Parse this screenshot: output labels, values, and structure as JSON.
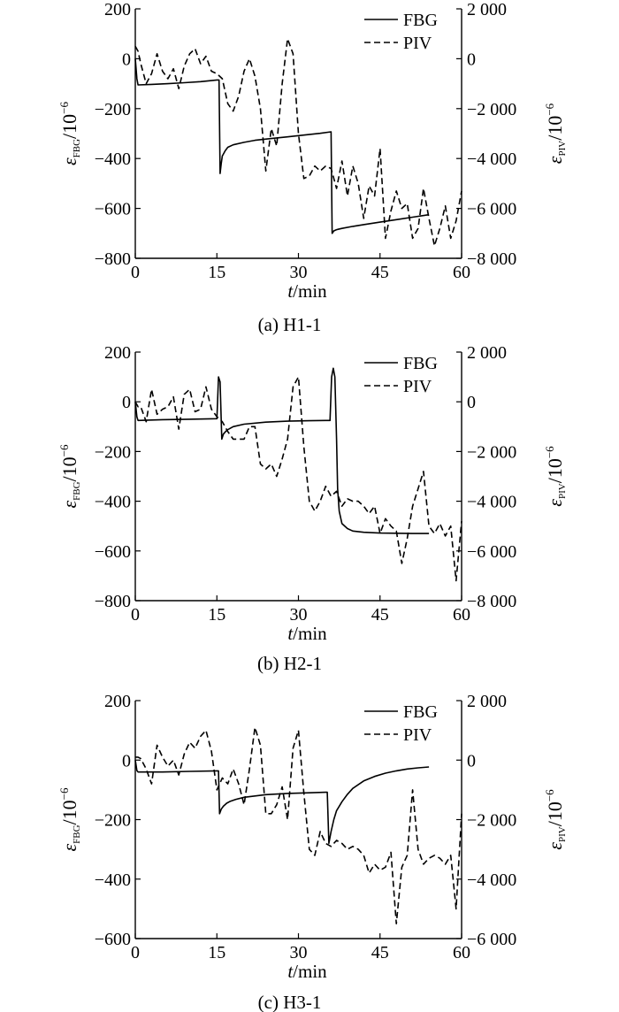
{
  "chart_data": [
    {
      "type": "line",
      "caption": "(a) H1-1",
      "xlabel_var": "t",
      "xlabel_unit": "/min",
      "ylabel_left": {
        "sym": "ε",
        "sub": "FBG",
        "unit": "/10",
        "exp": "−6"
      },
      "ylabel_right": {
        "sym": "ε",
        "sub": "PIV",
        "unit": "/10",
        "exp": "−6"
      },
      "xlim": [
        0,
        60
      ],
      "ylim_left": [
        -800,
        200
      ],
      "ylim_right": [
        -8000,
        2000
      ],
      "xticks": [
        0,
        15,
        30,
        45,
        60
      ],
      "xtick_labels": [
        "0",
        "15",
        "30",
        "45",
        "60"
      ],
      "yticks_left": [
        -800,
        -600,
        -400,
        -200,
        0,
        200
      ],
      "ytick_labels_left": [
        "−800",
        "−600",
        "−400",
        "−200",
        "0",
        "200"
      ],
      "yticks_right": [
        -8000,
        -6000,
        -4000,
        -2000,
        0,
        2000
      ],
      "ytick_labels_right": [
        "−8 000",
        "−6 000",
        "−4 000",
        "−2 000",
        "0",
        "2 000"
      ],
      "legend": [
        {
          "label": "FBG",
          "style": "solid"
        },
        {
          "label": "PIV",
          "style": "dashed"
        }
      ],
      "series": [
        {
          "name": "FBG",
          "axis": "left",
          "style": "solid",
          "x": [
            0,
            0.3,
            0.5,
            3,
            6,
            9,
            12,
            15,
            15.4,
            15.6,
            15.8,
            16,
            16.5,
            17,
            18,
            20,
            22,
            25,
            28,
            31,
            34,
            36,
            36.2,
            36.5,
            37,
            38,
            40,
            42,
            45,
            48,
            51,
            54
          ],
          "y": [
            0,
            -80,
            -105,
            -103,
            -100,
            -96,
            -92,
            -85,
            -85,
            -460,
            -420,
            -390,
            -370,
            -355,
            -345,
            -335,
            -327,
            -320,
            -313,
            -306,
            -299,
            -293,
            -700,
            -690,
            -685,
            -680,
            -672,
            -665,
            -655,
            -645,
            -635,
            -625
          ]
        },
        {
          "name": "PIV",
          "axis": "right",
          "style": "dashed",
          "x": [
            0,
            0.5,
            1,
            2,
            3,
            4,
            5,
            6,
            7,
            8,
            9,
            10,
            11,
            12,
            13,
            14,
            15,
            16,
            17,
            18,
            19,
            20,
            21,
            22,
            23,
            24,
            25,
            26,
            27,
            28,
            29,
            30,
            31,
            32,
            33,
            34,
            35,
            36,
            37,
            38,
            39,
            40,
            41,
            42,
            43,
            44,
            45,
            46,
            47,
            48,
            49,
            50,
            51,
            52,
            53,
            54,
            55,
            56,
            57,
            58,
            59,
            60
          ],
          "y": [
            500,
            300,
            -200,
            -1000,
            -600,
            200,
            -500,
            -800,
            -400,
            -1200,
            -300,
            200,
            400,
            -200,
            100,
            -500,
            -600,
            -800,
            -1800,
            -2100,
            -1500,
            -500,
            0,
            -700,
            -2000,
            -4500,
            -2800,
            -3500,
            -1000,
            800,
            200,
            -3000,
            -4800,
            -4700,
            -4300,
            -4500,
            -4300,
            -4400,
            -5200,
            -4100,
            -5500,
            -4300,
            -5000,
            -6400,
            -5100,
            -5500,
            -3600,
            -7200,
            -6100,
            -5300,
            -6000,
            -5800,
            -7200,
            -6800,
            -5200,
            -6400,
            -7500,
            -6800,
            -5900,
            -7200,
            -6500,
            -5300
          ]
        }
      ]
    },
    {
      "type": "line",
      "caption": "(b) H2-1",
      "xlabel_var": "t",
      "xlabel_unit": "/min",
      "ylabel_left": {
        "sym": "ε",
        "sub": "FBG",
        "unit": "/10",
        "exp": "−6"
      },
      "ylabel_right": {
        "sym": "ε",
        "sub": "PIV",
        "unit": "/10",
        "exp": "−6"
      },
      "xlim": [
        0,
        60
      ],
      "ylim_left": [
        -800,
        200
      ],
      "ylim_right": [
        -8000,
        2000
      ],
      "xticks": [
        0,
        15,
        30,
        45,
        60
      ],
      "xtick_labels": [
        "0",
        "15",
        "30",
        "45",
        "60"
      ],
      "yticks_left": [
        -800,
        -600,
        -400,
        -200,
        0,
        200
      ],
      "ytick_labels_left": [
        "−800",
        "−600",
        "−400",
        "−200",
        "0",
        "200"
      ],
      "yticks_right": [
        -8000,
        -6000,
        -4000,
        -2000,
        0,
        2000
      ],
      "ytick_labels_right": [
        "−8 000",
        "−6 000",
        "−4 000",
        "−2 000",
        "0",
        "2 000"
      ],
      "legend": [
        {
          "label": "FBG",
          "style": "solid"
        },
        {
          "label": "PIV",
          "style": "dashed"
        }
      ],
      "series": [
        {
          "name": "FBG",
          "axis": "left",
          "style": "solid",
          "x": [
            0,
            0.3,
            0.5,
            5,
            10,
            15,
            15.3,
            15.6,
            15.9,
            16.2,
            16.6,
            17,
            18,
            20,
            24,
            28,
            32,
            35,
            35.8,
            36.1,
            36.4,
            36.7,
            37,
            37.2,
            37.5,
            38,
            39,
            40,
            42,
            45,
            48,
            51,
            54
          ],
          "y": [
            0,
            -60,
            -75,
            -72,
            -70,
            -68,
            100,
            80,
            -150,
            -130,
            -120,
            -112,
            -100,
            -90,
            -82,
            -78,
            -76,
            -75,
            -75,
            100,
            135,
            100,
            -150,
            -350,
            -440,
            -490,
            -510,
            -520,
            -525,
            -528,
            -529,
            -530,
            -530
          ]
        },
        {
          "name": "PIV",
          "axis": "right",
          "style": "dashed",
          "x": [
            0,
            0.5,
            1,
            2,
            3,
            4,
            5,
            6,
            7,
            8,
            9,
            10,
            11,
            12,
            13,
            14,
            15,
            16,
            17,
            18,
            19,
            20,
            21,
            22,
            23,
            24,
            25,
            26,
            27,
            28,
            29,
            30,
            31,
            32,
            33,
            34,
            35,
            36,
            37,
            38,
            39,
            40,
            41,
            42,
            43,
            44,
            45,
            46,
            47,
            48,
            49,
            50,
            51,
            52,
            53,
            54,
            55,
            56,
            57,
            58,
            59,
            60
          ],
          "y": [
            0,
            -200,
            -200,
            -800,
            500,
            -500,
            -300,
            -200,
            200,
            -1100,
            300,
            500,
            -400,
            -300,
            600,
            -300,
            -600,
            -800,
            -1200,
            -1500,
            -1500,
            -1500,
            -1000,
            -1000,
            -2500,
            -2700,
            -2500,
            -3000,
            -2300,
            -1500,
            600,
            1000,
            -1800,
            -4000,
            -4400,
            -4000,
            -3400,
            -3800,
            -3600,
            -4200,
            -3900,
            -4000,
            -4000,
            -4200,
            -4500,
            -4200,
            -5300,
            -4700,
            -5000,
            -5200,
            -6500,
            -5500,
            -4200,
            -3500,
            -2800,
            -5000,
            -5300,
            -4900,
            -5400,
            -5000,
            -7200,
            -4800
          ]
        }
      ]
    },
    {
      "type": "line",
      "caption": "(c) H3-1",
      "xlabel_var": "t",
      "xlabel_unit": "/min",
      "ylabel_left": {
        "sym": "ε",
        "sub": "FBG",
        "unit": "/10",
        "exp": "−6"
      },
      "ylabel_right": {
        "sym": "ε",
        "sub": "PIV",
        "unit": "/10",
        "exp": "−6"
      },
      "xlim": [
        0,
        60
      ],
      "ylim_left": [
        -600,
        200
      ],
      "ylim_right": [
        -6000,
        2000
      ],
      "xticks": [
        0,
        15,
        30,
        45,
        60
      ],
      "xtick_labels": [
        "0",
        "15",
        "30",
        "45",
        "60"
      ],
      "yticks_left": [
        -600,
        -400,
        -200,
        0,
        200
      ],
      "ytick_labels_left": [
        "−600",
        "−400",
        "−200",
        "0",
        "200"
      ],
      "yticks_right": [
        -6000,
        -4000,
        -2000,
        0,
        2000
      ],
      "ytick_labels_right": [
        "−6 000",
        "−4 000",
        "−2 000",
        "0",
        "2 000"
      ],
      "legend": [
        {
          "label": "FBG",
          "style": "solid"
        },
        {
          "label": "PIV",
          "style": "dashed"
        }
      ],
      "series": [
        {
          "name": "FBG",
          "axis": "left",
          "style": "solid",
          "x": [
            0,
            0.3,
            0.5,
            5,
            10,
            15,
            15.3,
            15.5,
            15.8,
            16.2,
            16.8,
            17.5,
            18.5,
            20,
            24,
            28,
            32,
            35,
            35.3,
            35.6,
            36,
            36.5,
            37,
            38,
            39,
            40,
            42,
            44,
            46,
            48,
            50,
            52,
            54
          ],
          "y": [
            0,
            -35,
            -40,
            -40,
            -38,
            -36,
            -36,
            -180,
            -165,
            -155,
            -145,
            -138,
            -132,
            -125,
            -116,
            -112,
            -110,
            -108,
            -108,
            -280,
            -240,
            -200,
            -170,
            -140,
            -115,
            -95,
            -70,
            -55,
            -44,
            -36,
            -30,
            -26,
            -23
          ]
        },
        {
          "name": "PIV",
          "axis": "right",
          "style": "dashed",
          "x": [
            0,
            0.5,
            1,
            2,
            3,
            4,
            5,
            6,
            7,
            8,
            9,
            10,
            11,
            12,
            13,
            14,
            15,
            16,
            17,
            18,
            19,
            20,
            21,
            22,
            23,
            24,
            25,
            26,
            27,
            28,
            29,
            30,
            31,
            32,
            33,
            34,
            35,
            36,
            37,
            38,
            39,
            40,
            41,
            42,
            43,
            44,
            45,
            46,
            47,
            48,
            49,
            50,
            51,
            52,
            53,
            54,
            55,
            56,
            57,
            58,
            59,
            60
          ],
          "y": [
            100,
            100,
            50,
            -300,
            -800,
            500,
            100,
            -200,
            0,
            -500,
            200,
            600,
            400,
            800,
            1000,
            300,
            -1000,
            -600,
            -800,
            -300,
            -800,
            -1500,
            -300,
            1100,
            500,
            -1800,
            -1800,
            -1500,
            -900,
            -2000,
            400,
            1000,
            -1100,
            -3000,
            -3200,
            -2400,
            -2800,
            -2900,
            -2700,
            -2800,
            -3000,
            -2900,
            -3000,
            -3200,
            -3800,
            -3500,
            -3700,
            -3600,
            -3100,
            -5500,
            -3600,
            -3200,
            -1000,
            -3000,
            -3500,
            -3300,
            -3200,
            -3300,
            -3500,
            -3200,
            -5000,
            -1800
          ]
        }
      ]
    }
  ]
}
